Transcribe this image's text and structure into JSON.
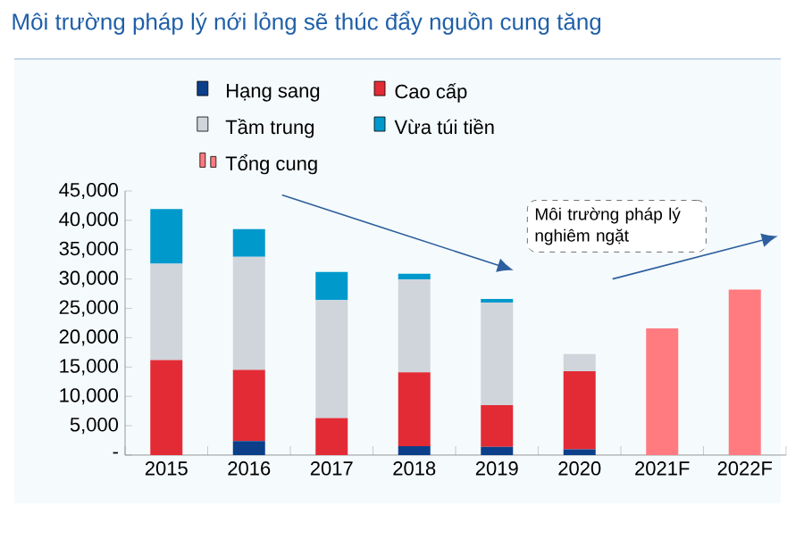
{
  "chart_data": {
    "type": "bar",
    "stacked": true,
    "title": "Môi trường pháp lý nới lỏng sẽ thúc đẩy nguồn cung tăng",
    "categories": [
      "2015",
      "2016",
      "2017",
      "2018",
      "2019",
      "2020",
      "2021F",
      "2022F"
    ],
    "series": [
      {
        "name": "Hạng sang",
        "color": "#0b3f8a",
        "values": [
          0,
          2400,
          0,
          1500,
          1400,
          1000,
          null,
          null
        ]
      },
      {
        "name": "Cao cấp",
        "color": "#e32b35",
        "values": [
          16200,
          12100,
          6300,
          12600,
          7100,
          13300,
          null,
          null
        ]
      },
      {
        "name": "Tầm trung",
        "color": "#d0d4db",
        "values": [
          16400,
          19300,
          20100,
          15800,
          17500,
          2900,
          null,
          null
        ]
      },
      {
        "name": "Vừa túi tiền",
        "color": "#0099cc",
        "values": [
          9300,
          4700,
          4800,
          1000,
          600,
          0,
          null,
          null
        ]
      },
      {
        "name": "Tổng cung",
        "color": "#ff7b80",
        "values": [
          null,
          null,
          null,
          null,
          null,
          null,
          21600,
          28200
        ]
      }
    ],
    "ylim": [
      0,
      45000
    ],
    "yticks": [
      {
        "value": 0,
        "label": "-"
      },
      {
        "value": 5000,
        "label": "5,000"
      },
      {
        "value": 10000,
        "label": "10,000"
      },
      {
        "value": 15000,
        "label": "15,000"
      },
      {
        "value": 20000,
        "label": "20,000"
      },
      {
        "value": 25000,
        "label": "25,000"
      },
      {
        "value": 30000,
        "label": "30,000"
      },
      {
        "value": 35000,
        "label": "35,000"
      },
      {
        "value": 40000,
        "label": "40,000"
      },
      {
        "value": 45000,
        "label": "45,000"
      }
    ],
    "legend": "top",
    "annotations": [
      "Môi trường pháp lý nghiêm ngặt"
    ]
  }
}
